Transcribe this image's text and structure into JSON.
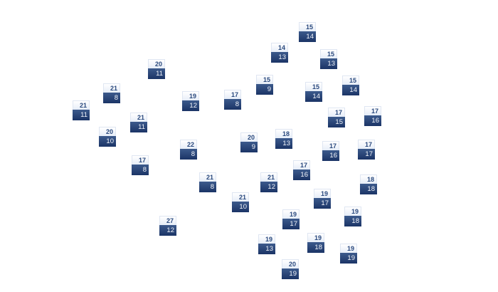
{
  "colors": {
    "label_top_text": "#2b4a7e",
    "label_bottom_bg": "#1b3466",
    "label_bottom_text": "#f2f5fb"
  },
  "markers": [
    {
      "top": "15",
      "bottom": "14"
    },
    {
      "top": "14",
      "bottom": "13"
    },
    {
      "top": "15",
      "bottom": "13"
    },
    {
      "top": "20",
      "bottom": "11"
    },
    {
      "top": "15",
      "bottom": "9"
    },
    {
      "top": "15",
      "bottom": "14"
    },
    {
      "top": "15",
      "bottom": "14"
    },
    {
      "top": "21",
      "bottom": "8"
    },
    {
      "top": "19",
      "bottom": "12"
    },
    {
      "top": "17",
      "bottom": "8"
    },
    {
      "top": "21",
      "bottom": "11"
    },
    {
      "top": "17",
      "bottom": "15"
    },
    {
      "top": "17",
      "bottom": "16"
    },
    {
      "top": "21",
      "bottom": "11"
    },
    {
      "top": "20",
      "bottom": "10"
    },
    {
      "top": "20",
      "bottom": "9"
    },
    {
      "top": "18",
      "bottom": "13"
    },
    {
      "top": "22",
      "bottom": "8"
    },
    {
      "top": "17",
      "bottom": "16"
    },
    {
      "top": "17",
      "bottom": "17"
    },
    {
      "top": "17",
      "bottom": "8"
    },
    {
      "top": "17",
      "bottom": "16"
    },
    {
      "top": "21",
      "bottom": "8"
    },
    {
      "top": "21",
      "bottom": "12"
    },
    {
      "top": "18",
      "bottom": "18"
    },
    {
      "top": "21",
      "bottom": "10"
    },
    {
      "top": "19",
      "bottom": "17"
    },
    {
      "top": "19",
      "bottom": "18"
    },
    {
      "top": "19",
      "bottom": "17"
    },
    {
      "top": "27",
      "bottom": "12"
    },
    {
      "top": "19",
      "bottom": "13"
    },
    {
      "top": "19",
      "bottom": "18"
    },
    {
      "top": "19",
      "bottom": "19"
    },
    {
      "top": "20",
      "bottom": "19"
    }
  ]
}
